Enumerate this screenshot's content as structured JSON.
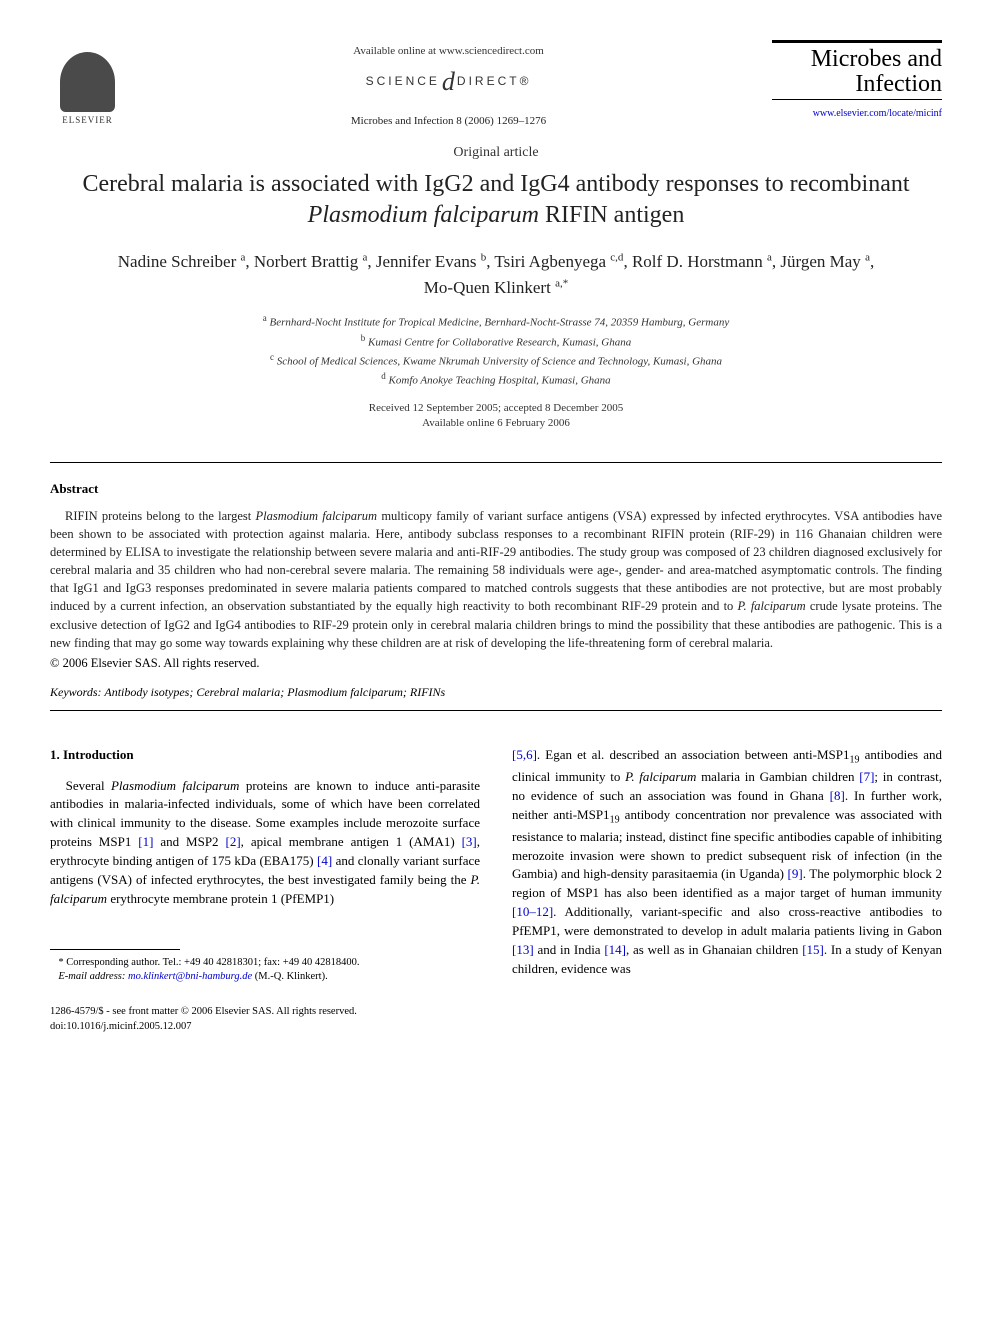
{
  "header": {
    "elsevier_label": "ELSEVIER",
    "available_online": "Available online at www.sciencedirect.com",
    "science_direct_left": "SCIENCE",
    "science_direct_right": "DIRECT®",
    "journal_ref": "Microbes and Infection 8 (2006) 1269–1276",
    "journal_title_line1": "Microbes and",
    "journal_title_line2": "Infection",
    "journal_link": "www.elsevier.com/locate/micinf"
  },
  "article": {
    "type": "Original article",
    "title_pre": "Cerebral malaria is associated with IgG2 and IgG4 antibody responses to recombinant ",
    "title_italic": "Plasmodium falciparum",
    "title_post": " RIFIN antigen",
    "authors_html": "Nadine Schreiber <sup>a</sup>, Norbert Brattig <sup>a</sup>, Jennifer Evans <sup>b</sup>, Tsiri Agbenyega <sup>c,d</sup>, Rolf D. Horstmann <sup>a</sup>, Jürgen May <sup>a</sup>, Mo-Quen Klinkert <sup>a,*</sup>",
    "affiliations": [
      {
        "sup": "a",
        "text": "Bernhard-Nocht Institute for Tropical Medicine, Bernhard-Nocht-Strasse 74, 20359 Hamburg, Germany"
      },
      {
        "sup": "b",
        "text": "Kumasi Centre for Collaborative Research, Kumasi, Ghana"
      },
      {
        "sup": "c",
        "text": "School of Medical Sciences, Kwame Nkrumah University of Science and Technology, Kumasi, Ghana"
      },
      {
        "sup": "d",
        "text": "Komfo Anokye Teaching Hospital, Kumasi, Ghana"
      }
    ],
    "received": "Received 12 September 2005; accepted 8 December 2005",
    "available": "Available online 6 February 2006"
  },
  "abstract": {
    "heading": "Abstract",
    "text": "RIFIN proteins belong to the largest <i>Plasmodium falciparum</i> multicopy family of variant surface antigens (VSA) expressed by infected erythrocytes. VSA antibodies have been shown to be associated with protection against malaria. Here, antibody subclass responses to a recombinant RIFIN protein (RIF-29) in 116 Ghanaian children were determined by ELISA to investigate the relationship between severe malaria and anti-RIF-29 antibodies. The study group was composed of 23 children diagnosed exclusively for cerebral malaria and 35 children who had non-cerebral severe malaria. The remaining 58 individuals were age-, gender- and area-matched asymptomatic controls. The finding that IgG1 and IgG3 responses predominated in severe malaria patients compared to matched controls suggests that these antibodies are not protective, but are most probably induced by a current infection, an observation substantiated by the equally high reactivity to both recombinant RIF-29 protein and to <i>P. falciparum</i> crude lysate proteins. The exclusive detection of IgG2 and IgG4 antibodies to RIF-29 protein only in cerebral malaria children brings to mind the possibility that these antibodies are pathogenic. This is a new finding that may go some way towards explaining why these children are at risk of developing the life-threatening form of cerebral malaria.",
    "copyright": "© 2006 Elsevier SAS. All rights reserved.",
    "keywords_label": "Keywords:",
    "keywords": "Antibody isotypes; Cerebral malaria; Plasmodium falciparum; RIFINs"
  },
  "body": {
    "intro_heading": "1. Introduction",
    "col1": "Several <i>Plasmodium falciparum</i> proteins are known to induce anti-parasite antibodies in malaria-infected individuals, some of which have been correlated with clinical immunity to the disease. Some examples include merozoite surface proteins MSP1 <a class=\"ref-link\">[1]</a> and MSP2 <a class=\"ref-link\">[2]</a>, apical membrane antigen 1 (AMA1) <a class=\"ref-link\">[3]</a>, erythrocyte binding antigen of 175 kDa (EBA175) <a class=\"ref-link\">[4]</a> and clonally variant surface antigens (VSA) of infected erythrocytes, the best investigated family being the <i>P. falciparum</i> erythrocyte membrane protein 1 (PfEMP1)",
    "col2": "<a class=\"ref-link\">[5,6]</a>. Egan et al. described an association between anti-MSP1<span class=\"sub\">19</span> antibodies and clinical immunity to <i>P. falciparum</i> malaria in Gambian children <a class=\"ref-link\">[7]</a>; in contrast, no evidence of such an association was found in Ghana <a class=\"ref-link\">[8]</a>. In further work, neither anti-MSP1<span class=\"sub\">19</span> antibody concentration nor prevalence was associated with resistance to malaria; instead, distinct fine specific antibodies capable of inhibiting merozoite invasion were shown to predict subsequent risk of infection (in the Gambia) and high-density parasitaemia (in Uganda) <a class=\"ref-link\">[9]</a>. The polymorphic block 2 region of MSP1 has also been identified as a major target of human immunity <a class=\"ref-link\">[10–12]</a>. Additionally, variant-specific and also cross-reactive antibodies to PfEMP1, were demonstrated to develop in adult malaria patients living in Gabon <a class=\"ref-link\">[13]</a> and in India <a class=\"ref-link\">[14]</a>, as well as in Ghanaian children <a class=\"ref-link\">[15]</a>. In a study of Kenyan children, evidence was"
  },
  "footnote": {
    "corresponding": "* Corresponding author. Tel.: +49 40 42818301; fax: +49 40 42818400.",
    "email_label": "E-mail address:",
    "email": "mo.klinkert@bni-hamburg.de",
    "email_post": " (M.-Q. Klinkert)."
  },
  "footer": {
    "issn": "1286-4579/$ - see front matter © 2006 Elsevier SAS. All rights reserved.",
    "doi": "doi:10.1016/j.micinf.2005.12.007"
  },
  "style": {
    "link_color": "#0000cc",
    "text_color": "#222222",
    "page_bg": "#ffffff"
  }
}
